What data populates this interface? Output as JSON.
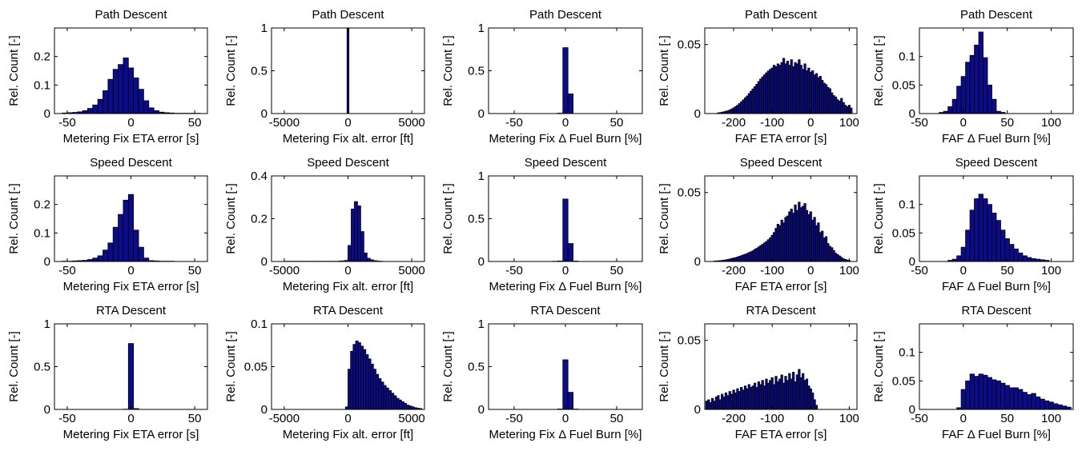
{
  "figure": {
    "rows": 3,
    "cols": 5
  },
  "style": {
    "bar_fill": "#0c0c8a",
    "bar_edge": "#000000",
    "axis_color": "#000000",
    "background": "#ffffff"
  },
  "chart_data": [
    {
      "type": "bar",
      "title": "Path Descent",
      "xlabel": "Metering Fix ETA error [s]",
      "ylabel": "Rel. Count [-]",
      "xlim": [
        -60,
        60
      ],
      "ylim": [
        0,
        0.3
      ],
      "xticks": [
        -50,
        0,
        50
      ],
      "yticks": [
        0,
        0.1,
        0.2
      ],
      "bin_width": 4,
      "grid": false,
      "x": [
        -52,
        -48,
        -44,
        -40,
        -36,
        -32,
        -28,
        -24,
        -20,
        -16,
        -12,
        -8,
        -4,
        0,
        4,
        8,
        12,
        16,
        20,
        24,
        28,
        32,
        36,
        40,
        44,
        48,
        52
      ],
      "values": [
        0.002,
        0.003,
        0.004,
        0.006,
        0.01,
        0.018,
        0.03,
        0.05,
        0.08,
        0.12,
        0.155,
        0.172,
        0.195,
        0.16,
        0.125,
        0.085,
        0.045,
        0.02,
        0.01,
        0.005,
        0.003,
        0.002,
        0.001,
        0.001,
        0.001,
        0.001,
        0.001
      ]
    },
    {
      "type": "bar",
      "title": "Path Descent",
      "xlabel": "Metering Fix alt. error [ft]",
      "ylabel": "Rel. Count [-]",
      "xlim": [
        -6000,
        6000
      ],
      "ylim": [
        0,
        1
      ],
      "xticks": [
        -5000,
        0,
        5000
      ],
      "yticks": [
        0,
        0.5,
        1
      ],
      "bin_width": 150,
      "grid": false,
      "x": [
        0
      ],
      "values": [
        1.0
      ]
    },
    {
      "type": "bar",
      "title": "Path Descent",
      "xlabel": "Metering Fix Δ Fuel Burn [%]",
      "ylabel": "Rel. Count [-]",
      "xlim": [
        -75,
        75
      ],
      "ylim": [
        0,
        1
      ],
      "xticks": [
        -50,
        0,
        50
      ],
      "yticks": [
        0,
        0.5,
        1
      ],
      "bin_width": 5,
      "grid": false,
      "x": [
        -5,
        0,
        5
      ],
      "values": [
        0.005,
        0.77,
        0.23
      ]
    },
    {
      "type": "bar",
      "title": "Path Descent",
      "xlabel": "FAF ETA error [s]",
      "ylabel": "Rel. Count [-]",
      "xlim": [
        -275,
        120
      ],
      "ylim": [
        0,
        0.062
      ],
      "xticks": [
        -200,
        -100,
        0,
        100
      ],
      "yticks": [
        0,
        0.05
      ],
      "bin_width": 5,
      "grid": false,
      "x": [
        -240,
        -235,
        -230,
        -225,
        -220,
        -215,
        -210,
        -205,
        -200,
        -195,
        -190,
        -185,
        -180,
        -175,
        -170,
        -165,
        -160,
        -155,
        -150,
        -145,
        -140,
        -135,
        -130,
        -125,
        -120,
        -115,
        -110,
        -105,
        -100,
        -95,
        -90,
        -85,
        -80,
        -75,
        -70,
        -65,
        -60,
        -55,
        -50,
        -45,
        -40,
        -35,
        -30,
        -25,
        -20,
        -15,
        -10,
        -5,
        0,
        5,
        10,
        15,
        20,
        25,
        30,
        35,
        40,
        45,
        50,
        55,
        60,
        65,
        70,
        75,
        80,
        85,
        90,
        95,
        100,
        105
      ],
      "values": [
        0.0005,
        0.0007,
        0.001,
        0.0013,
        0.0017,
        0.002,
        0.0026,
        0.0033,
        0.0041,
        0.005,
        0.006,
        0.0072,
        0.0085,
        0.0099,
        0.0113,
        0.0127,
        0.0145,
        0.0162,
        0.0178,
        0.0195,
        0.0212,
        0.0232,
        0.025,
        0.0265,
        0.028,
        0.0295,
        0.0308,
        0.032,
        0.033,
        0.035,
        0.034,
        0.036,
        0.035,
        0.037,
        0.04,
        0.036,
        0.038,
        0.035,
        0.039,
        0.034,
        0.037,
        0.036,
        0.039,
        0.035,
        0.032,
        0.036,
        0.031,
        0.033,
        0.03,
        0.031,
        0.028,
        0.029,
        0.026,
        0.027,
        0.024,
        0.022,
        0.021,
        0.019,
        0.018,
        0.015,
        0.013,
        0.012,
        0.01,
        0.009,
        0.011,
        0.008,
        0.006,
        0.005,
        0.006,
        0.004
      ]
    },
    {
      "type": "bar",
      "title": "Path Descent",
      "xlabel": "FAF Δ Fuel Burn [%]",
      "ylabel": "Rel. Count [-]",
      "xlim": [
        -50,
        125
      ],
      "ylim": [
        0,
        0.15
      ],
      "xticks": [
        -50,
        0,
        50,
        100
      ],
      "yticks": [
        0,
        0.05,
        0.1
      ],
      "bin_width": 5,
      "grid": false,
      "x": [
        -25,
        -20,
        -15,
        -10,
        -5,
        0,
        5,
        10,
        15,
        20,
        25,
        30,
        35,
        40,
        45
      ],
      "values": [
        0.002,
        0.004,
        0.012,
        0.025,
        0.048,
        0.065,
        0.09,
        0.102,
        0.12,
        0.143,
        0.098,
        0.05,
        0.025,
        0.004,
        0.002
      ]
    },
    {
      "type": "bar",
      "title": "Speed Descent",
      "xlabel": "Metering Fix ETA error [s]",
      "ylabel": "Rel. Count [-]",
      "xlim": [
        -60,
        60
      ],
      "ylim": [
        0,
        0.3
      ],
      "xticks": [
        -50,
        0,
        50
      ],
      "yticks": [
        0,
        0.1,
        0.2
      ],
      "bin_width": 4,
      "grid": false,
      "x": [
        -52,
        -48,
        -44,
        -40,
        -36,
        -32,
        -28,
        -24,
        -20,
        -16,
        -12,
        -8,
        -4,
        0,
        4,
        8,
        12,
        16,
        20,
        24,
        28,
        32
      ],
      "values": [
        0.001,
        0.001,
        0.002,
        0.003,
        0.004,
        0.007,
        0.012,
        0.02,
        0.04,
        0.065,
        0.12,
        0.165,
        0.215,
        0.235,
        0.11,
        0.05,
        0.012,
        0.003,
        0.002,
        0.001,
        0.001,
        0.001
      ]
    },
    {
      "type": "bar",
      "title": "Speed Descent",
      "xlabel": "Metering Fix alt. error [ft]",
      "ylabel": "Rel. Count [-]",
      "xlim": [
        -6000,
        6000
      ],
      "ylim": [
        0,
        0.4
      ],
      "xticks": [
        -5000,
        0,
        5000
      ],
      "yticks": [
        0,
        0.2,
        0.4
      ],
      "bin_width": 250,
      "grid": false,
      "x": [
        -4875,
        -4625,
        -4375,
        -4125,
        -3875,
        -3625,
        -3375,
        -3125,
        -2875,
        -2625,
        -2375,
        -2125,
        -1875,
        -1625,
        -1375,
        -1125,
        -875,
        -625,
        -375,
        -125,
        125,
        375,
        625,
        875,
        1125,
        1375,
        1625,
        1875,
        2125,
        2375,
        2625
      ],
      "values": [
        0.001,
        0.001,
        0.001,
        0.001,
        0.001,
        0.001,
        0.001,
        0.001,
        0.001,
        0.001,
        0.001,
        0.001,
        0.001,
        0.001,
        0.001,
        0.001,
        0.001,
        0.002,
        0.003,
        0.005,
        0.075,
        0.245,
        0.28,
        0.26,
        0.14,
        0.04,
        0.015,
        0.008,
        0.004,
        0.002,
        0.001
      ]
    },
    {
      "type": "bar",
      "title": "Speed Descent",
      "xlabel": "Metering Fix Δ Fuel Burn [%]",
      "ylabel": "Rel. Count [-]",
      "xlim": [
        -75,
        75
      ],
      "ylim": [
        0,
        1
      ],
      "xticks": [
        -50,
        0,
        50
      ],
      "yticks": [
        0,
        0.5,
        1
      ],
      "bin_width": 5,
      "grid": false,
      "x": [
        -10,
        -5,
        0,
        5,
        10
      ],
      "values": [
        0.003,
        0.006,
        0.73,
        0.21,
        0.005
      ]
    },
    {
      "type": "bar",
      "title": "Speed Descent",
      "xlabel": "FAF ETA error [s]",
      "ylabel": "Rel. Count [-]",
      "xlim": [
        -275,
        120
      ],
      "ylim": [
        0,
        0.062
      ],
      "xticks": [
        -200,
        -100,
        0,
        100
      ],
      "yticks": [
        0,
        0.05
      ],
      "bin_width": 5,
      "grid": false,
      "x": [
        -250,
        -245,
        -240,
        -235,
        -230,
        -225,
        -220,
        -215,
        -210,
        -205,
        -200,
        -195,
        -190,
        -185,
        -180,
        -175,
        -170,
        -165,
        -160,
        -155,
        -150,
        -145,
        -140,
        -135,
        -130,
        -125,
        -120,
        -115,
        -110,
        -105,
        -100,
        -95,
        -90,
        -85,
        -80,
        -75,
        -70,
        -65,
        -60,
        -55,
        -50,
        -45,
        -40,
        -35,
        -30,
        -25,
        -20,
        -15,
        -10,
        -5,
        0,
        5,
        10,
        15,
        20,
        25,
        30,
        35,
        40,
        45,
        50,
        55,
        60,
        65,
        70,
        75,
        80,
        85,
        90,
        95,
        100
      ],
      "values": [
        0.0003,
        0.0004,
        0.0005,
        0.0006,
        0.0008,
        0.001,
        0.0012,
        0.0015,
        0.0018,
        0.0022,
        0.0025,
        0.0028,
        0.0032,
        0.0038,
        0.0042,
        0.0048,
        0.0052,
        0.0058,
        0.0065,
        0.007,
        0.0078,
        0.0088,
        0.0095,
        0.0105,
        0.0115,
        0.0125,
        0.0135,
        0.0145,
        0.0158,
        0.0172,
        0.019,
        0.021,
        0.024,
        0.027,
        0.026,
        0.03,
        0.028,
        0.032,
        0.033,
        0.036,
        0.038,
        0.035,
        0.041,
        0.037,
        0.043,
        0.039,
        0.04,
        0.042,
        0.037,
        0.034,
        0.036,
        0.03,
        0.032,
        0.026,
        0.028,
        0.021,
        0.022,
        0.017,
        0.018,
        0.013,
        0.011,
        0.01,
        0.008,
        0.006,
        0.005,
        0.004,
        0.003,
        0.002,
        0.0015,
        0.001,
        0.0006
      ]
    },
    {
      "type": "bar",
      "title": "Speed Descent",
      "xlabel": "FAF Δ Fuel Burn [%]",
      "ylabel": "Rel. Count [-]",
      "xlim": [
        -50,
        125
      ],
      "ylim": [
        0,
        0.15
      ],
      "xticks": [
        -50,
        0,
        50,
        100
      ],
      "yticks": [
        0,
        0.05,
        0.1
      ],
      "bin_width": 5,
      "grid": false,
      "x": [
        -15,
        -10,
        -5,
        0,
        5,
        10,
        15,
        20,
        25,
        30,
        35,
        40,
        45,
        50,
        55,
        60,
        65,
        70,
        75,
        80,
        85,
        90,
        95
      ],
      "values": [
        0.002,
        0.004,
        0.01,
        0.025,
        0.055,
        0.09,
        0.11,
        0.118,
        0.11,
        0.1,
        0.085,
        0.072,
        0.055,
        0.04,
        0.03,
        0.022,
        0.015,
        0.01,
        0.007,
        0.005,
        0.004,
        0.003,
        0.002
      ]
    },
    {
      "type": "bar",
      "title": "RTA Descent",
      "xlabel": "Metering Fix ETA error [s]",
      "ylabel": "Rel. Count [-]",
      "xlim": [
        -60,
        60
      ],
      "ylim": [
        0,
        1
      ],
      "xticks": [
        -50,
        0,
        50
      ],
      "yticks": [
        0,
        0.5,
        1
      ],
      "bin_width": 4,
      "grid": false,
      "x": [
        -4,
        0,
        4
      ],
      "values": [
        0.003,
        0.77,
        0.01
      ]
    },
    {
      "type": "bar",
      "title": "RTA Descent",
      "xlabel": "Metering Fix alt. error [ft]",
      "ylabel": "Rel. Count [-]",
      "xlim": [
        -6000,
        6000
      ],
      "ylim": [
        0,
        0.1
      ],
      "xticks": [
        -5000,
        0,
        5000
      ],
      "yticks": [
        0,
        0.05,
        0.1
      ],
      "bin_width": 200,
      "grid": false,
      "x": [
        -100,
        100,
        300,
        500,
        700,
        900,
        1100,
        1300,
        1500,
        1700,
        1900,
        2100,
        2300,
        2500,
        2700,
        2900,
        3100,
        3300,
        3500,
        3700,
        3900,
        4100,
        4300,
        4500,
        4700,
        4900,
        5100,
        5300,
        5500,
        5700
      ],
      "values": [
        0.003,
        0.047,
        0.068,
        0.076,
        0.08,
        0.078,
        0.074,
        0.07,
        0.064,
        0.059,
        0.053,
        0.047,
        0.041,
        0.036,
        0.032,
        0.028,
        0.025,
        0.022,
        0.019,
        0.016,
        0.013,
        0.011,
        0.009,
        0.007,
        0.005,
        0.004,
        0.003,
        0.002,
        0.0015,
        0.001
      ]
    },
    {
      "type": "bar",
      "title": "RTA Descent",
      "xlabel": "Metering Fix Δ Fuel Burn [%]",
      "ylabel": "Rel. Count [-]",
      "xlim": [
        -75,
        75
      ],
      "ylim": [
        0,
        1
      ],
      "xticks": [
        -50,
        0,
        50
      ],
      "yticks": [
        0,
        0.5,
        1
      ],
      "bin_width": 5,
      "grid": false,
      "x": [
        -5,
        0,
        5,
        10
      ],
      "values": [
        0.005,
        0.58,
        0.2,
        0.004
      ]
    },
    {
      "type": "bar",
      "title": "RTA Descent",
      "xlabel": "FAF ETA error [s]",
      "ylabel": "Rel. Count [-]",
      "xlim": [
        -275,
        120
      ],
      "ylim": [
        0,
        0.062
      ],
      "xticks": [
        -200,
        -100,
        0,
        100
      ],
      "yticks": [
        0,
        0.05
      ],
      "bin_width": 5,
      "grid": false,
      "x": [
        -270,
        -265,
        -260,
        -255,
        -250,
        -245,
        -240,
        -235,
        -230,
        -225,
        -220,
        -215,
        -210,
        -205,
        -200,
        -195,
        -190,
        -185,
        -180,
        -175,
        -170,
        -165,
        -160,
        -155,
        -150,
        -145,
        -140,
        -135,
        -130,
        -125,
        -120,
        -115,
        -110,
        -105,
        -100,
        -95,
        -90,
        -85,
        -80,
        -75,
        -70,
        -65,
        -60,
        -55,
        -50,
        -45,
        -40,
        -35,
        -30,
        -25,
        -20,
        -15,
        -10,
        -5,
        0,
        5,
        10,
        15
      ],
      "values": [
        0.006,
        0.007,
        0.005,
        0.008,
        0.006,
        0.009,
        0.01,
        0.007,
        0.011,
        0.009,
        0.012,
        0.01,
        0.013,
        0.011,
        0.014,
        0.012,
        0.015,
        0.013,
        0.016,
        0.014,
        0.017,
        0.015,
        0.018,
        0.016,
        0.017,
        0.019,
        0.016,
        0.02,
        0.018,
        0.021,
        0.017,
        0.022,
        0.019,
        0.021,
        0.023,
        0.018,
        0.024,
        0.02,
        0.022,
        0.025,
        0.019,
        0.024,
        0.021,
        0.026,
        0.022,
        0.027,
        0.02,
        0.025,
        0.029,
        0.023,
        0.026,
        0.021,
        0.022,
        0.017,
        0.015,
        0.012,
        0.007,
        0.003
      ]
    },
    {
      "type": "bar",
      "title": "RTA Descent",
      "xlabel": "FAF Δ Fuel Burn [%]",
      "ylabel": "Rel. Count [-]",
      "xlim": [
        -50,
        125
      ],
      "ylim": [
        0,
        0.15
      ],
      "xticks": [
        -50,
        0,
        50,
        100
      ],
      "yticks": [
        0,
        0.05,
        0.1
      ],
      "bin_width": 5,
      "grid": false,
      "x": [
        -5,
        0,
        5,
        10,
        15,
        20,
        25,
        30,
        35,
        40,
        45,
        50,
        55,
        60,
        65,
        70,
        75,
        80,
        85,
        90,
        95,
        100,
        105,
        110,
        115,
        120
      ],
      "values": [
        0.003,
        0.035,
        0.05,
        0.062,
        0.058,
        0.062,
        0.06,
        0.056,
        0.052,
        0.05,
        0.046,
        0.042,
        0.038,
        0.038,
        0.035,
        0.03,
        0.026,
        0.028,
        0.022,
        0.018,
        0.015,
        0.013,
        0.01,
        0.008,
        0.006,
        0.004
      ]
    }
  ]
}
